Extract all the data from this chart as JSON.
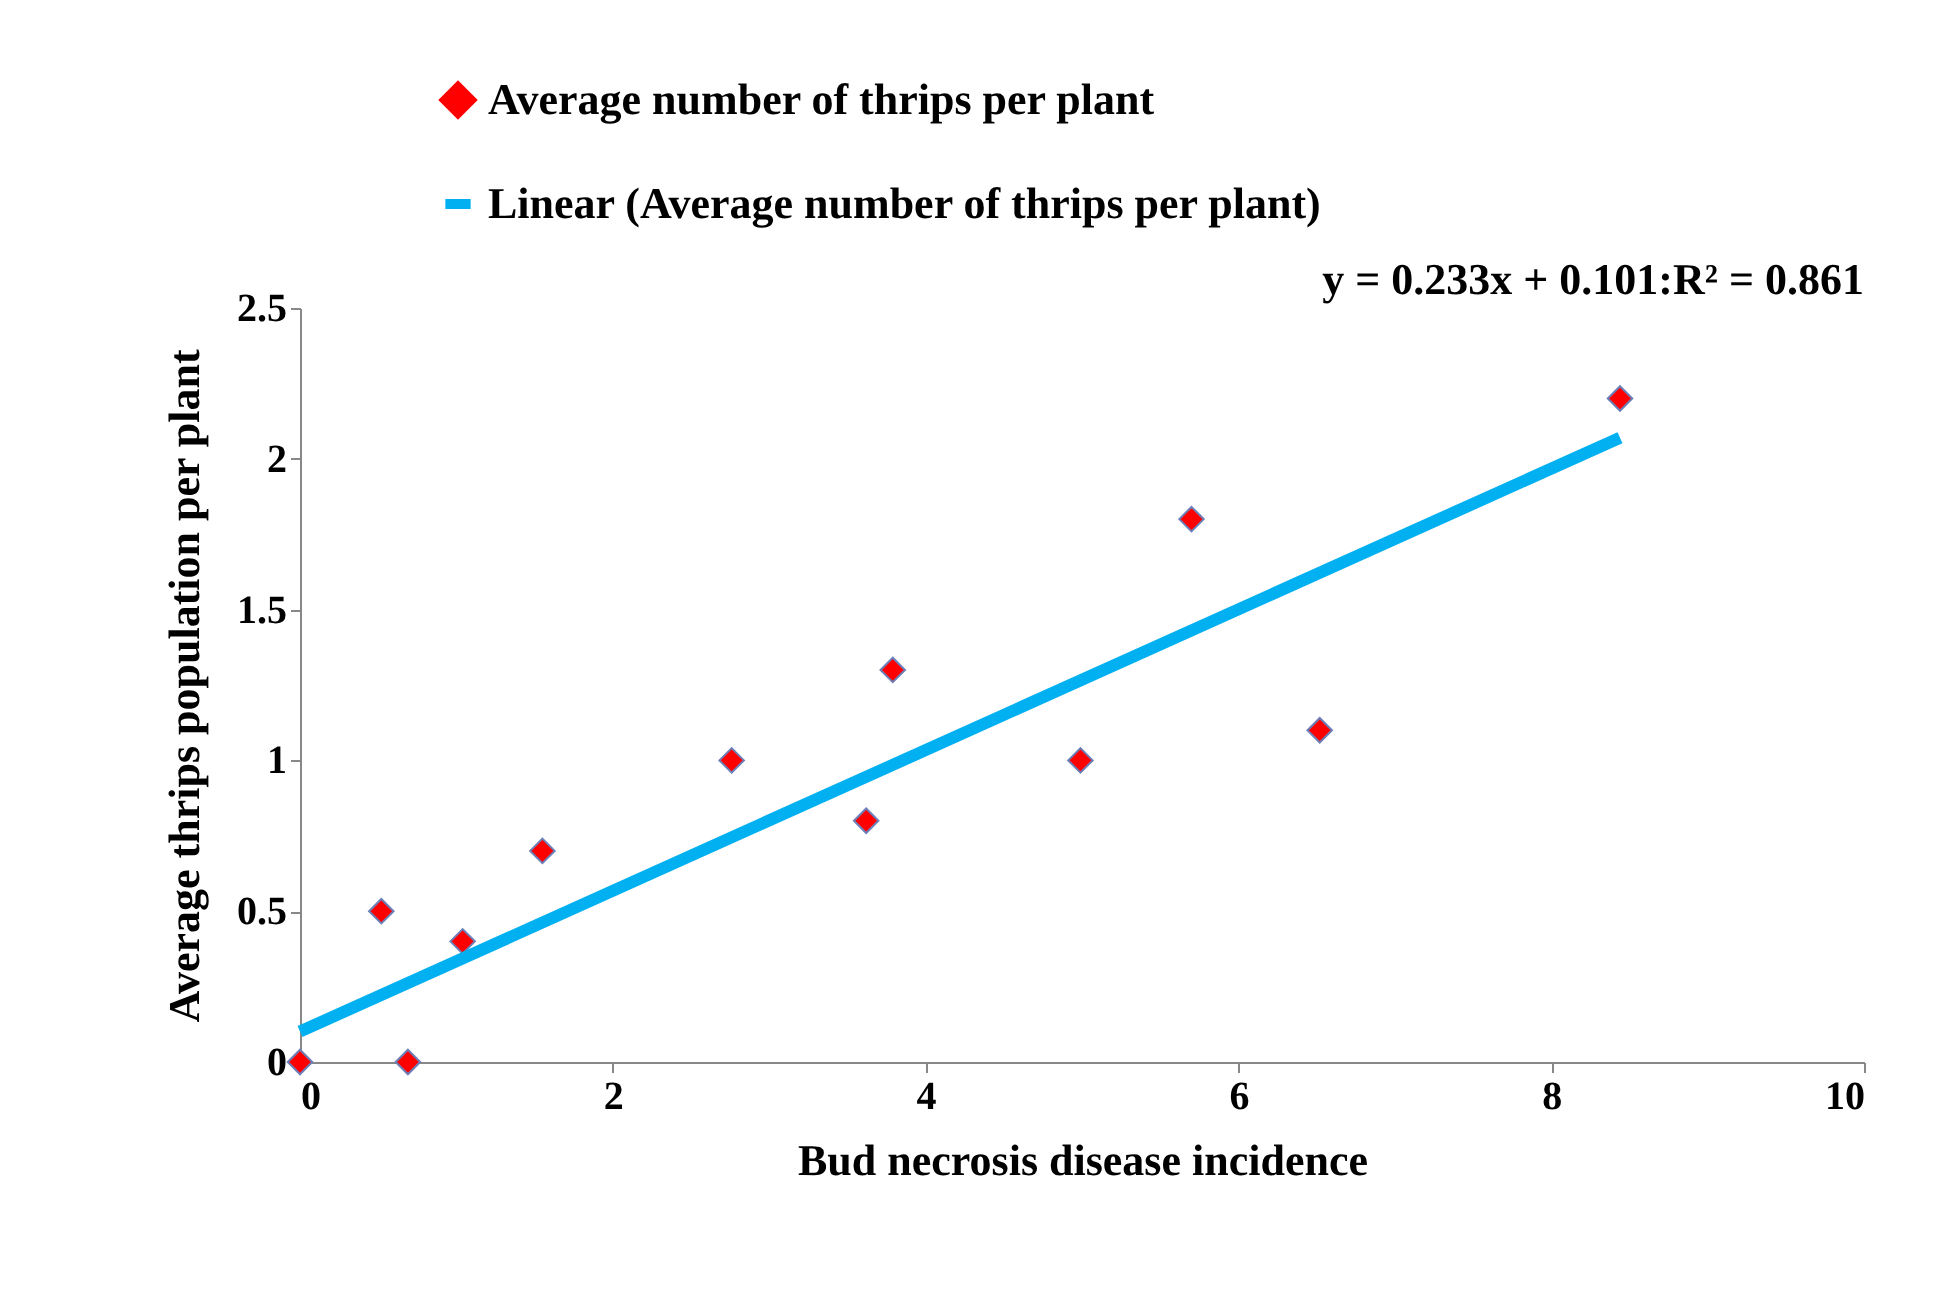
{
  "chart_data": {
    "type": "scatter",
    "xlabel": "Bud necrosis disease incidence",
    "ylabel": "Average thrips population per plant",
    "xlim": [
      0,
      10
    ],
    "xticks": [
      0,
      2,
      4,
      6,
      8,
      10
    ],
    "ylim": [
      0,
      2.5
    ],
    "yticks": [
      0,
      0.5,
      1,
      1.5,
      2,
      2.5
    ],
    "grid": false,
    "legend": "top",
    "marker": "diamond",
    "annotations": [
      "y = 0.233x + 0.101:R² = 0.861"
    ],
    "series": [
      {
        "name": "Average number of thrips per plant",
        "color": "#ff0000",
        "x": [
          0,
          0.52,
          0.69,
          1.04,
          1.55,
          2.76,
          3.62,
          3.79,
          4.99,
          5.7,
          6.52,
          8.44
        ],
        "values": [
          0,
          0.5,
          0,
          0.4,
          0.7,
          1.0,
          0.8,
          1.3,
          1.0,
          1.8,
          1.1,
          2.2
        ]
      },
      {
        "name": "Linear (Average number of thrips per plant)",
        "type": "line",
        "color": "#00b0f0",
        "line_style": "solid",
        "marker": "none",
        "x": [
          0,
          8.44
        ],
        "values": [
          0.101,
          2.07
        ]
      }
    ]
  }
}
